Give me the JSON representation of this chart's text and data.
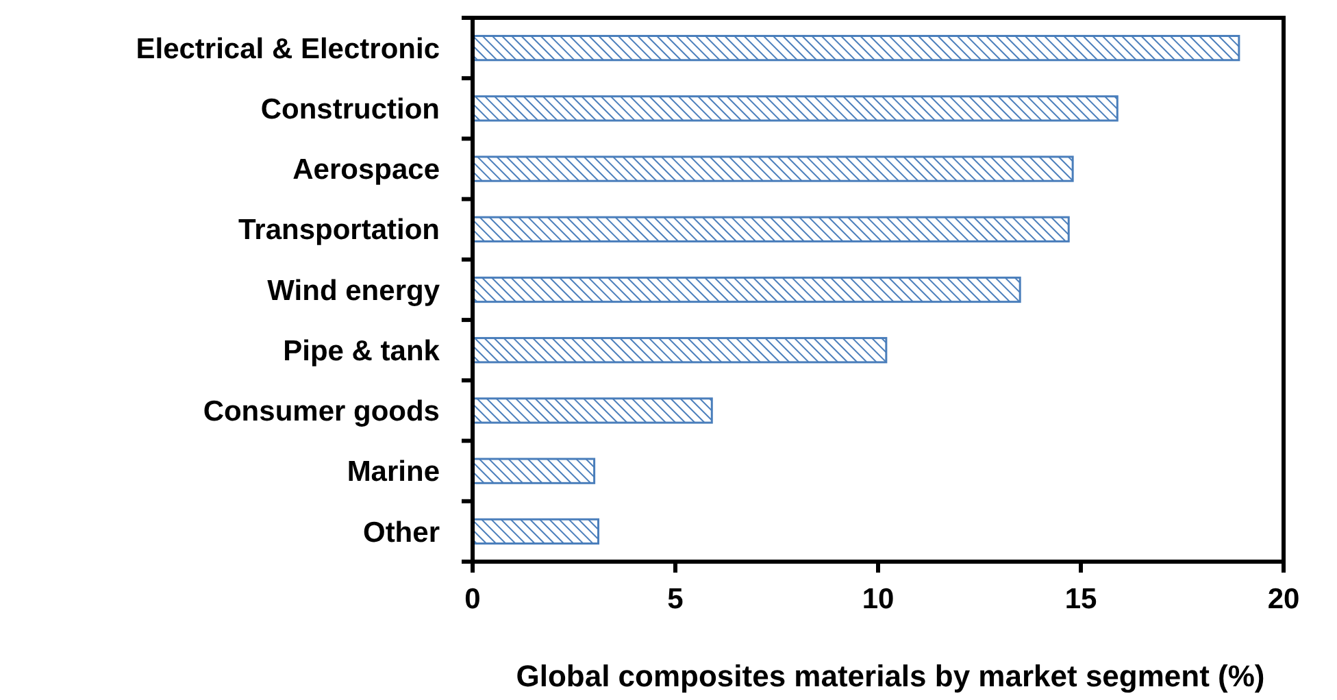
{
  "chart_data": {
    "type": "bar",
    "orientation": "horizontal",
    "xlabel": "Global composites materials by market segment (%)",
    "categories": [
      "Electrical & Electronic",
      "Construction",
      "Aerospace",
      "Transportation",
      "Wind energy",
      "Pipe & tank",
      "Consumer goods",
      "Marine",
      "Other"
    ],
    "values": [
      18.9,
      15.9,
      14.8,
      14.7,
      13.5,
      10.2,
      5.9,
      3.0,
      3.1
    ],
    "color": "#4a7ebb",
    "xlim": [
      0,
      20
    ],
    "xticks": [
      0,
      5,
      10,
      15,
      20
    ],
    "grid": false
  }
}
